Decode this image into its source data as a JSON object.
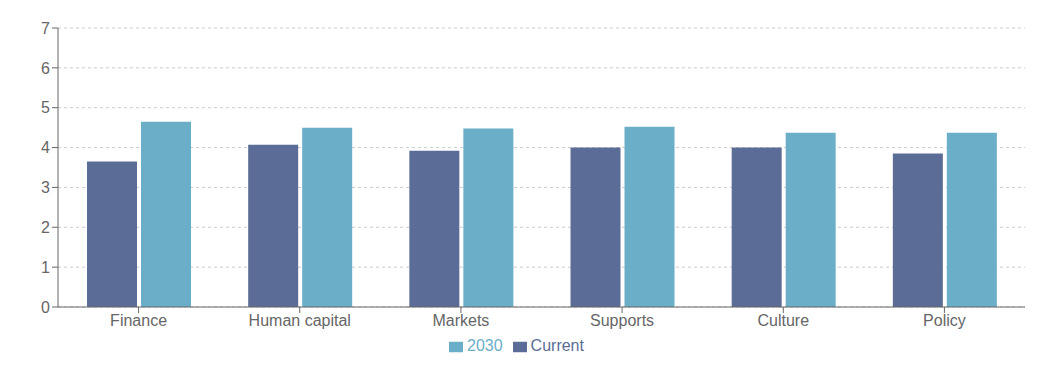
{
  "chart_data": {
    "type": "bar",
    "categories": [
      "Finance",
      "Human capital",
      "Markets",
      "Supports",
      "Culture",
      "Policy"
    ],
    "series": [
      {
        "name": "Current",
        "color": "#5b6d96",
        "values": [
          3.65,
          4.07,
          3.92,
          4.0,
          4.0,
          3.85
        ]
      },
      {
        "name": "2030",
        "color": "#6aaec8",
        "values": [
          4.65,
          4.5,
          4.48,
          4.52,
          4.37,
          4.37
        ]
      }
    ],
    "ylim": [
      0,
      7
    ],
    "yticks": [
      0,
      1,
      2,
      3,
      4,
      5,
      6,
      7
    ],
    "grid": true,
    "legend": "bottom"
  }
}
